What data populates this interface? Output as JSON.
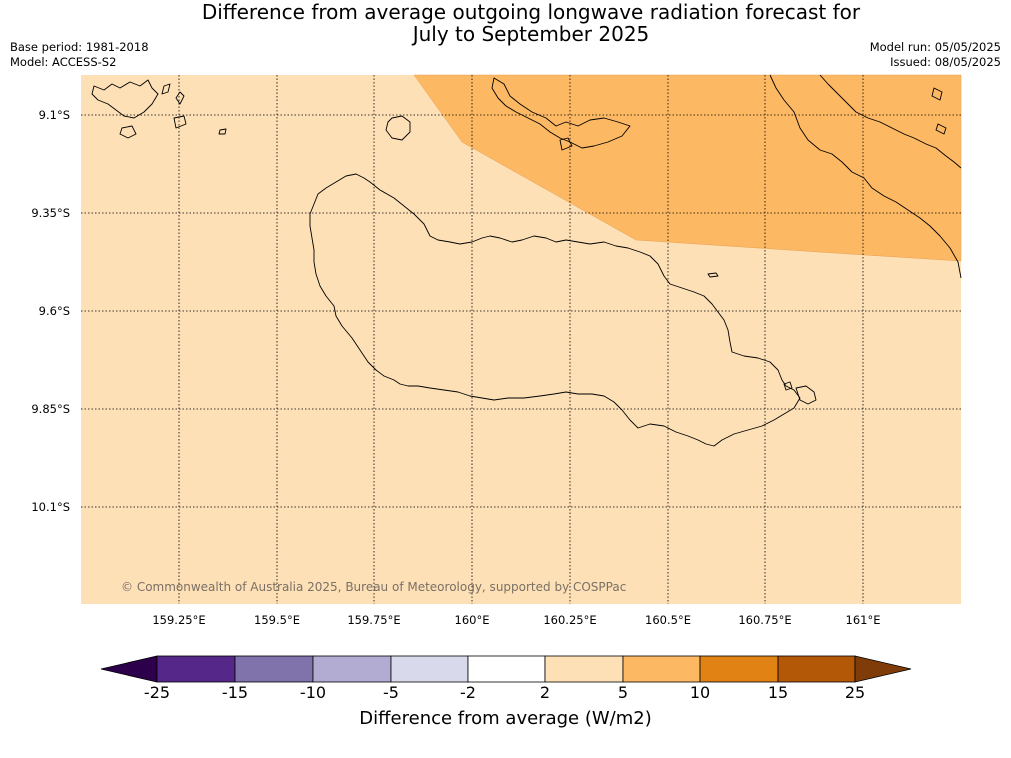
{
  "title": {
    "line1": "Difference from average outgoing longwave radiation forecast for",
    "line2": "July to September 2025"
  },
  "meta_left": {
    "base_period": "Base period: 1981-2018",
    "model": "Model: ACCESS-S2"
  },
  "meta_right": {
    "model_run": "Model run: 05/05/2025",
    "issued": "Issued: 08/05/2025"
  },
  "map": {
    "lat_labels": [
      "9.1°S",
      "9.35°S",
      "9.6°S",
      "9.85°S",
      "10.1°S"
    ],
    "lon_labels": [
      "159.25°E",
      "159.5°E",
      "159.75°E",
      "160°E",
      "160.25°E",
      "160.5°E",
      "160.75°E",
      "161°E"
    ],
    "copyright": "© Commonwealth of Australia 2025, Bureau of Meteorology, supported by COSPPac",
    "colors": {
      "base_fill": "#fde0b6",
      "upper_fill": "#fdb863",
      "coastline": "#000000",
      "grid": "#000000"
    }
  },
  "colorbar": {
    "tick_labels": [
      "-25",
      "-15",
      "-10",
      "-5",
      "-2",
      "2",
      "5",
      "10",
      "15",
      "25"
    ],
    "label": "Difference from average (W/m2)",
    "colors": {
      "below_min": "#2d004b",
      "bins": [
        "#542788",
        "#8073ac",
        "#b2abd2",
        "#d8daeb",
        "#ffffff",
        "#fde0b6",
        "#fdb863",
        "#e08214",
        "#b35806"
      ],
      "above_max": "#7f3b08"
    }
  }
}
